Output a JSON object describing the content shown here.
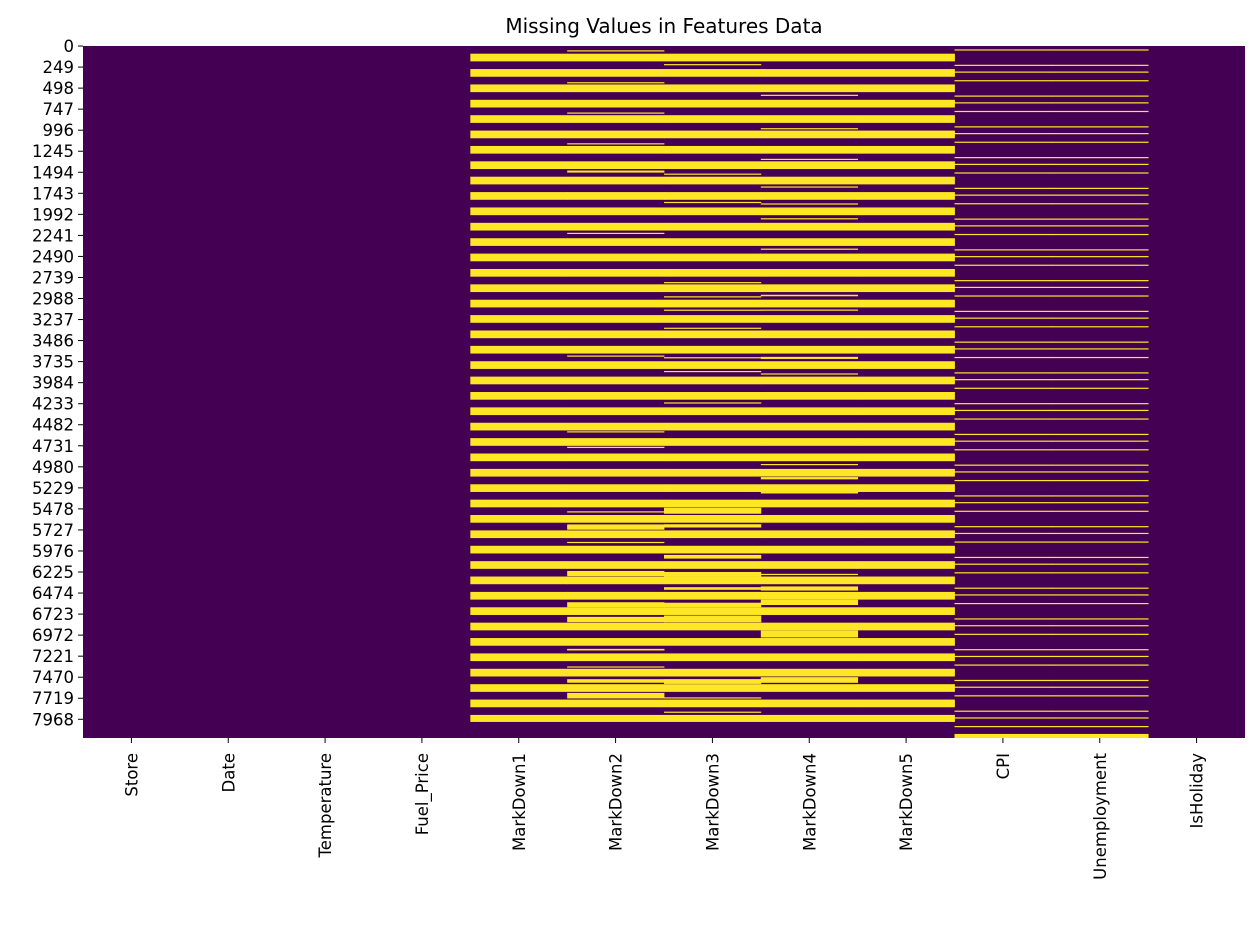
{
  "chart_data": {
    "type": "heatmap",
    "title": "Missing Values in Features Data",
    "xlabel": "",
    "ylabel": "",
    "columns": [
      "Store",
      "Date",
      "Temperature",
      "Fuel_Price",
      "MarkDown1",
      "MarkDown2",
      "MarkDown3",
      "MarkDown4",
      "MarkDown5",
      "CPI",
      "Unemployment",
      "IsHoliday"
    ],
    "row_count": 8190,
    "y_ticks": [
      0,
      249,
      498,
      747,
      996,
      1245,
      1494,
      1743,
      1992,
      2241,
      2490,
      2739,
      2988,
      3237,
      3486,
      3735,
      3984,
      4233,
      4482,
      4731,
      4980,
      5229,
      5478,
      5727,
      5976,
      6225,
      6474,
      6723,
      6972,
      7221,
      7470,
      7719,
      7968
    ],
    "colors": {
      "present": "#440154",
      "missing": "#fde725"
    },
    "colorbar": false,
    "grid": false,
    "legend": "none",
    "missing_pattern": {
      "block_period": 182,
      "present_per_block": 91,
      "missing_per_block": 91,
      "markdown_missing_until_row": 8000,
      "cpi_unemployment_missing_per_block": 13,
      "cpi_unemployment_missing_tail_rows": 48,
      "columns_without_missing": [
        "Store",
        "Date",
        "Temperature",
        "Fuel_Price",
        "IsHoliday"
      ]
    }
  }
}
